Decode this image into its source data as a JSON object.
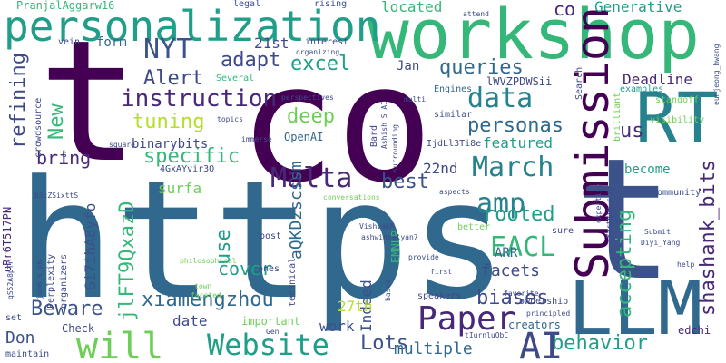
{
  "words": [
    {
      "text": "https",
      "color": "#31688e",
      "vertical": false
    },
    {
      "text": "co",
      "color": "#440154",
      "vertical": false
    },
    {
      "text": "t",
      "color": "#440154",
      "vertical": false
    },
    {
      "text": "t",
      "color": "#3b528b",
      "vertical": false
    },
    {
      "text": "workshop",
      "color": "#35b779",
      "vertical": false
    },
    {
      "text": "personalization",
      "color": "#1f9e89",
      "vertical": false
    },
    {
      "text": "LLM",
      "color": "#31688e",
      "vertical": false
    },
    {
      "text": "Submission",
      "color": "#440154",
      "vertical": true
    },
    {
      "text": "RT",
      "color": "#26828e",
      "vertical": false
    },
    {
      "text": "Paper",
      "color": "#482878",
      "vertical": false
    },
    {
      "text": "Website",
      "color": "#1f9e89",
      "vertical": false
    },
    {
      "text": "will",
      "color": "#6ece58",
      "vertical": false
    },
    {
      "text": "AI",
      "color": "#3e4989",
      "vertical": false
    },
    {
      "text": "Malta",
      "color": "#482878",
      "vertical": false
    },
    {
      "text": "March",
      "color": "#26828e",
      "vertical": false
    },
    {
      "text": "EACL",
      "color": "#35b779",
      "vertical": false
    },
    {
      "text": "amp",
      "color": "#26828e",
      "vertical": false
    },
    {
      "text": "NYT",
      "color": "#3b528b",
      "vertical": false
    },
    {
      "text": "data",
      "color": "#26828e",
      "vertical": false
    },
    {
      "text": "instruction",
      "color": "#482878",
      "vertical": false
    },
    {
      "text": "xiamengzhou",
      "color": "#31688e",
      "vertical": false
    },
    {
      "text": "accepting",
      "color": "#35b779",
      "vertical": true
    },
    {
      "text": "shashank_bits",
      "color": "#482878",
      "vertical": true
    },
    {
      "text": "refining",
      "color": "#3e4989",
      "vertical": true
    },
    {
      "text": "specific",
      "color": "#35b779",
      "vertical": false
    },
    {
      "text": "Alert",
      "color": "#3e4989",
      "vertical": false
    },
    {
      "text": "personas",
      "color": "#31688e",
      "vertical": false
    },
    {
      "text": "behavior",
      "color": "#1f9e89",
      "vertical": false
    },
    {
      "text": "Lots",
      "color": "#3b528b",
      "vertical": false
    },
    {
      "text": "biases",
      "color": "#3e4989",
      "vertical": false
    },
    {
      "text": "rooted",
      "color": "#1f9e89",
      "vertical": false
    },
    {
      "text": "best",
      "color": "#3b528b",
      "vertical": false
    },
    {
      "text": "Beware",
      "color": "#3b528b",
      "vertical": false
    },
    {
      "text": "tuning",
      "color": "#b5de2b",
      "vertical": false
    },
    {
      "text": "excel",
      "color": "#1f9e89",
      "vertical": false
    },
    {
      "text": "adapt",
      "color": "#3e4989",
      "vertical": false
    },
    {
      "text": "queries",
      "color": "#31688e",
      "vertical": false
    },
    {
      "text": "deep",
      "color": "#6ece58",
      "vertical": false
    },
    {
      "text": "cover",
      "color": "#1f9e89",
      "vertical": false
    },
    {
      "text": "use",
      "color": "#1f9e89",
      "vertical": true
    },
    {
      "text": "us",
      "color": "#482878",
      "vertical": false
    },
    {
      "text": "New",
      "color": "#35b779",
      "vertical": true
    },
    {
      "text": "bring",
      "color": "#482878",
      "vertical": false
    },
    {
      "text": "multiple",
      "color": "#31688e",
      "vertical": false
    },
    {
      "text": "Don",
      "color": "#3b528b",
      "vertical": false
    },
    {
      "text": "facets",
      "color": "#3e4989",
      "vertical": false
    },
    {
      "text": "Generative",
      "color": "#1f9e89",
      "vertical": false
    },
    {
      "text": "Deadline",
      "color": "#482878",
      "vertical": false
    },
    {
      "text": "located",
      "color": "#35b779",
      "vertical": false
    },
    {
      "text": "surfa",
      "color": "#6ece58",
      "vertical": false
    },
    {
      "text": "binarybits",
      "color": "#3e4989",
      "vertical": false
    },
    {
      "text": "Gi7ihA8yfo",
      "color": "#3b528b",
      "vertical": true
    },
    {
      "text": "jlFT9QxazD",
      "color": "#35b779",
      "vertical": true
    },
    {
      "text": "aQKDzscssm",
      "color": "#31688e",
      "vertical": true
    },
    {
      "text": "Indeed",
      "color": "#3b528b",
      "vertical": true
    },
    {
      "text": "featured",
      "color": "#1f9e89",
      "vertical": false
    },
    {
      "text": "22nd",
      "color": "#3e4989",
      "vertical": false
    },
    {
      "text": "21st",
      "color": "#3e4989",
      "vertical": false
    },
    {
      "text": "work",
      "color": "#3b528b",
      "vertical": false
    },
    {
      "text": "27th",
      "color": "#b5de2b",
      "vertical": false
    },
    {
      "text": "date",
      "color": "#3e4989",
      "vertical": false
    },
    {
      "text": "ARR",
      "color": "#31688e",
      "vertical": false
    },
    {
      "text": "become",
      "color": "#1f9e89",
      "vertical": false
    },
    {
      "text": "creators",
      "color": "#31688e",
      "vertical": false
    },
    {
      "text": "co",
      "color": "#482878",
      "vertical": false
    },
    {
      "text": "form",
      "color": "#31688e",
      "vertical": false
    },
    {
      "text": "Jan",
      "color": "#3e4989",
      "vertical": false
    },
    {
      "text": "OpenAI",
      "color": "#31688e",
      "vertical": false
    },
    {
      "text": "edchi",
      "color": "#482878",
      "vertical": false
    },
    {
      "text": "oRr6T517PN",
      "color": "#482878",
      "vertical": true
    },
    {
      "text": "EMNLP",
      "color": "#35b779",
      "vertical": true
    },
    {
      "text": "lWVZPDWSii",
      "color": "#3e4989",
      "vertical": false
    },
    {
      "text": "PranjalAggarw16",
      "color": "#35b779",
      "vertical": false
    },
    {
      "text": "legal",
      "color": "#3e4989",
      "vertical": false
    },
    {
      "text": "rising",
      "color": "#3b528b",
      "vertical": false
    },
    {
      "text": "attend",
      "color": "#3e4989",
      "vertical": false
    },
    {
      "text": "interest",
      "color": "#3e4989",
      "vertical": false
    },
    {
      "text": "organizing",
      "color": "#3b528b",
      "vertical": false
    },
    {
      "text": "Several",
      "color": "#35b779",
      "vertical": false
    },
    {
      "text": "vein",
      "color": "#3e4989",
      "vertical": false
    },
    {
      "text": "examples",
      "color": "#1f9e89",
      "vertical": false
    },
    {
      "text": "eunjeong_hwang",
      "color": "#3b528b",
      "vertical": true
    },
    {
      "text": "Engines",
      "color": "#31688e",
      "vertical": false
    },
    {
      "text": "Search",
      "color": "#3e4989",
      "vertical": true
    },
    {
      "text": "perspectives",
      "color": "#3e4989",
      "vertical": false
    },
    {
      "text": "multi",
      "color": "#3e4989",
      "vertical": false
    },
    {
      "text": "standoff",
      "color": "#6ece58",
      "vertical": false
    },
    {
      "text": "visibility",
      "color": "#6ece58",
      "vertical": false
    },
    {
      "text": "brilliant",
      "color": "#6ece58",
      "vertical": true
    },
    {
      "text": "similar",
      "color": "#3e4989",
      "vertical": false
    },
    {
      "text": "topics",
      "color": "#3e4989",
      "vertical": false
    },
    {
      "text": "Ashish_S_AI",
      "color": "#3e4989",
      "vertical": true
    },
    {
      "text": "Bard",
      "color": "#3e4989",
      "vertical": true
    },
    {
      "text": "IjdLl3Ti8e",
      "color": "#3e4989",
      "vertical": false
    },
    {
      "text": "square",
      "color": "#3e4989",
      "vertical": false
    },
    {
      "text": "immerse",
      "color": "#3e4989",
      "vertical": false
    },
    {
      "text": "crowdsource",
      "color": "#3e4989",
      "vertical": true
    },
    {
      "text": "s",
      "color": "#3e4989",
      "vertical": false
    },
    {
      "text": "4GxAYvir3O",
      "color": "#3e4989",
      "vertical": false
    },
    {
      "text": "b3cZSixttS",
      "color": "#3e4989",
      "vertical": false
    },
    {
      "text": "community",
      "color": "#3b528b",
      "vertical": false
    },
    {
      "text": "aspects",
      "color": "#3e4989",
      "vertical": false
    },
    {
      "text": "conversations",
      "color": "#6ece58",
      "vertical": false
    },
    {
      "text": "expertise",
      "color": "#3e4989",
      "vertical": true
    },
    {
      "text": "Karthik_r_n",
      "color": "#3e4989",
      "vertical": true
    },
    {
      "text": "better",
      "color": "#6ece58",
      "vertical": false
    },
    {
      "text": "sure",
      "color": "#3e4989",
      "vertical": false
    },
    {
      "text": "provide",
      "color": "#3e4989",
      "vertical": false
    },
    {
      "text": "first",
      "color": "#3e4989",
      "vertical": false
    },
    {
      "text": "Submit",
      "color": "#3e4989",
      "vertical": false
    },
    {
      "text": "Diyi_Yang",
      "color": "#3e4989",
      "vertical": false
    },
    {
      "text": "help",
      "color": "#3e4989",
      "vertical": false
    },
    {
      "text": "post",
      "color": "#3e4989",
      "vertical": false
    },
    {
      "text": "ones",
      "color": "#3e4989",
      "vertical": false
    },
    {
      "text": "philosophical",
      "color": "#6ece58",
      "vertical": false
    },
    {
      "text": "town",
      "color": "#6ece58",
      "vertical": false
    },
    {
      "text": "faceted",
      "color": "#6ece58",
      "vertical": false
    },
    {
      "text": "technical",
      "color": "#3e4989",
      "vertical": true
    },
    {
      "text": "VishvakM",
      "color": "#3e4989",
      "vertical": false
    },
    {
      "text": "ashwinkalyan7",
      "color": "#3e4989",
      "vertical": false
    },
    {
      "text": "surrounding",
      "color": "#3e4989",
      "vertical": true
    },
    {
      "text": "based",
      "color": "#3e4989",
      "vertical": true
    },
    {
      "text": "speakers",
      "color": "#3e4989",
      "vertical": false
    },
    {
      "text": "ownership",
      "color": "#3e4989",
      "vertical": false
    },
    {
      "text": "favorite",
      "color": "#3e4989",
      "vertical": false
    },
    {
      "text": "principled",
      "color": "#3e4989",
      "vertical": false
    },
    {
      "text": "tIurnluQbC",
      "color": "#3e4989",
      "vertical": false
    },
    {
      "text": "important",
      "color": "#6ece58",
      "vertical": false
    },
    {
      "text": "Gen",
      "color": "#3e4989",
      "vertical": false
    },
    {
      "text": "Check",
      "color": "#3e4989",
      "vertical": false
    },
    {
      "text": "maintain",
      "color": "#3e4989",
      "vertical": false
    },
    {
      "text": "organizers",
      "color": "#3e4989",
      "vertical": true
    },
    {
      "text": "Perplexity",
      "color": "#3e4989",
      "vertical": true
    },
    {
      "text": "joon_s_pk",
      "color": "#3e4989",
      "vertical": true
    },
    {
      "text": "qS52A8pTr",
      "color": "#3e4989",
      "vertical": true
    },
    {
      "text": "set",
      "color": "#3e4989",
      "vertical": false
    }
  ]
}
